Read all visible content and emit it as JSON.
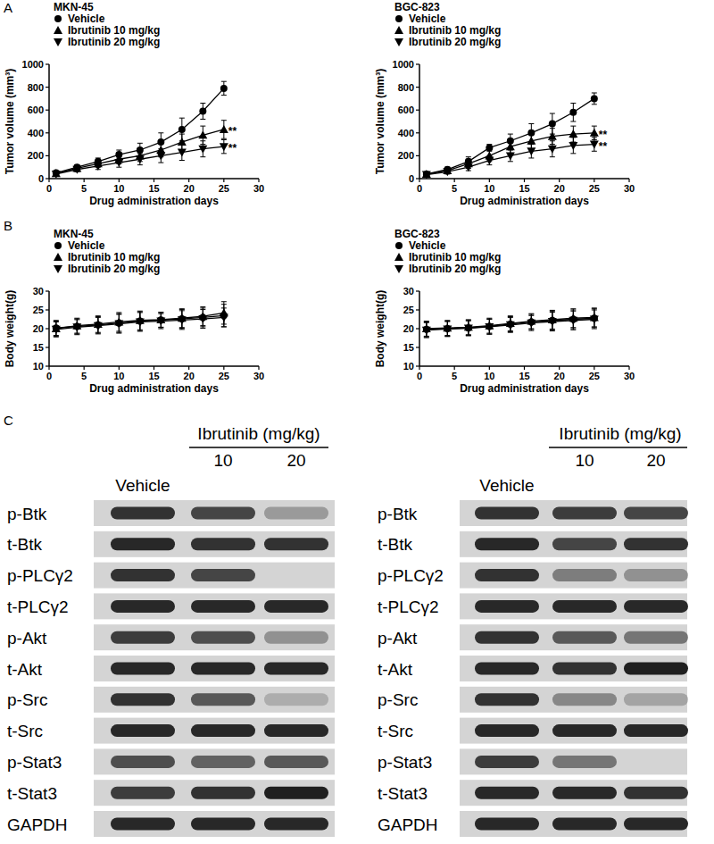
{
  "panel_labels": [
    "A",
    "B",
    "C"
  ],
  "chart_data": [
    {
      "type": "line",
      "title": "MKN-45",
      "x_label": "Drug administration days",
      "y_label": "Tumor volume (mm³)",
      "x": [
        1,
        4,
        7,
        10,
        13,
        16,
        19,
        22,
        25
      ],
      "xlim": [
        0,
        30
      ],
      "xticks": [
        0,
        5,
        10,
        15,
        20,
        25,
        30
      ],
      "ylim": [
        0,
        1000
      ],
      "yticks": [
        0,
        200,
        400,
        600,
        800,
        1000
      ],
      "grid": false,
      "series": [
        {
          "name": "Vehicle",
          "color": "#000000",
          "marker": "circle",
          "values": [
            50,
            100,
            150,
            210,
            250,
            320,
            430,
            590,
            790
          ],
          "errors": [
            10,
            20,
            30,
            40,
            60,
            80,
            100,
            70,
            60
          ]
        },
        {
          "name": "Ibrutinib 10 mg/kg",
          "color": "#000000",
          "marker": "triangle-up",
          "values": [
            45,
            90,
            130,
            170,
            200,
            250,
            320,
            380,
            430
          ],
          "errors": [
            10,
            20,
            30,
            40,
            50,
            60,
            70,
            80,
            80
          ],
          "annotation": "**"
        },
        {
          "name": "Ibrutinib 20 mg/kg",
          "color": "#000000",
          "marker": "triangle-down",
          "values": [
            40,
            80,
            110,
            140,
            170,
            200,
            230,
            260,
            280
          ],
          "errors": [
            10,
            20,
            30,
            40,
            50,
            60,
            70,
            70,
            60
          ],
          "annotation": "**"
        }
      ]
    },
    {
      "type": "line",
      "title": "BGC-823",
      "x_label": "Drug administration days",
      "y_label": "Tumor volume (mm³)",
      "x": [
        1,
        4,
        7,
        10,
        13,
        16,
        19,
        22,
        25
      ],
      "xlim": [
        0,
        30
      ],
      "xticks": [
        0,
        5,
        10,
        15,
        20,
        25,
        30
      ],
      "ylim": [
        0,
        1000
      ],
      "yticks": [
        0,
        200,
        400,
        600,
        800,
        1000
      ],
      "grid": false,
      "series": [
        {
          "name": "Vehicle",
          "color": "#000000",
          "marker": "circle",
          "values": [
            40,
            80,
            150,
            270,
            330,
            400,
            480,
            580,
            700
          ],
          "errors": [
            10,
            20,
            40,
            30,
            60,
            80,
            90,
            80,
            50
          ]
        },
        {
          "name": "Ibrutinib 10 mg/kg",
          "color": "#000000",
          "marker": "triangle-up",
          "values": [
            40,
            70,
            130,
            200,
            280,
            330,
            370,
            390,
            400
          ],
          "errors": [
            10,
            20,
            40,
            50,
            60,
            70,
            70,
            70,
            60
          ],
          "annotation": "**"
        },
        {
          "name": "Ibrutinib 20 mg/kg",
          "color": "#000000",
          "marker": "triangle-down",
          "values": [
            35,
            60,
            100,
            160,
            200,
            240,
            260,
            290,
            300
          ],
          "errors": [
            10,
            20,
            30,
            40,
            50,
            60,
            70,
            70,
            60
          ],
          "annotation": "**"
        }
      ]
    },
    {
      "type": "line",
      "title": "MKN-45",
      "x_label": "Drug administration days",
      "y_label": "Body weight(g)",
      "x": [
        1,
        4,
        7,
        10,
        13,
        16,
        19,
        22,
        25
      ],
      "xlim": [
        0,
        30
      ],
      "xticks": [
        0,
        5,
        10,
        15,
        20,
        25,
        30
      ],
      "ylim": [
        10,
        30
      ],
      "yticks": [
        10,
        15,
        20,
        25,
        30
      ],
      "grid": false,
      "series": [
        {
          "name": "Vehicle",
          "color": "#000000",
          "marker": "circle",
          "values": [
            20.2,
            20.6,
            21.0,
            21.5,
            22.0,
            22.3,
            22.6,
            23.0,
            23.5
          ],
          "errors": [
            2.0,
            2.0,
            2.2,
            2.5,
            2.5,
            2.0,
            2.5,
            2.5,
            3.0
          ]
        },
        {
          "name": "Ibrutinib 10 mg/kg",
          "color": "#000000",
          "marker": "triangle-up",
          "values": [
            20.0,
            20.8,
            21.2,
            21.8,
            22.2,
            22.4,
            22.8,
            23.3,
            24.2
          ],
          "errors": [
            2.0,
            2.0,
            2.2,
            2.5,
            2.5,
            2.0,
            2.5,
            2.5,
            3.0
          ]
        },
        {
          "name": "Ibrutinib 20 mg/kg",
          "color": "#000000",
          "marker": "triangle-down",
          "values": [
            19.8,
            20.4,
            20.8,
            21.3,
            21.8,
            22.0,
            22.3,
            22.6,
            23.0
          ],
          "errors": [
            2.0,
            2.0,
            2.2,
            2.5,
            2.5,
            2.0,
            2.5,
            2.5,
            2.5
          ]
        }
      ]
    },
    {
      "type": "line",
      "title": "BGC-823",
      "x_label": "Drug administration days",
      "y_label": "Body weight(g)",
      "x": [
        1,
        4,
        7,
        10,
        13,
        16,
        19,
        22,
        25
      ],
      "xlim": [
        0,
        30
      ],
      "xticks": [
        0,
        5,
        10,
        15,
        20,
        25,
        30
      ],
      "ylim": [
        10,
        30
      ],
      "yticks": [
        10,
        15,
        20,
        25,
        30
      ],
      "grid": false,
      "series": [
        {
          "name": "Vehicle",
          "color": "#000000",
          "marker": "circle",
          "values": [
            19.8,
            20.0,
            20.2,
            20.6,
            21.2,
            21.8,
            22.2,
            22.5,
            22.8
          ],
          "errors": [
            2.0,
            2.0,
            2.0,
            2.0,
            2.0,
            2.0,
            2.5,
            2.5,
            2.5
          ]
        },
        {
          "name": "Ibrutinib 10 mg/kg",
          "color": "#000000",
          "marker": "triangle-up",
          "values": [
            20.0,
            20.2,
            20.4,
            20.8,
            21.4,
            22.0,
            22.4,
            22.8,
            23.0
          ],
          "errors": [
            2.0,
            2.0,
            2.0,
            2.0,
            2.0,
            2.0,
            2.5,
            2.5,
            2.5
          ]
        },
        {
          "name": "Ibrutinib 20 mg/kg",
          "color": "#000000",
          "marker": "triangle-down",
          "values": [
            19.6,
            19.9,
            20.1,
            20.5,
            21.0,
            21.5,
            21.9,
            22.2,
            22.5
          ],
          "errors": [
            2.0,
            2.0,
            2.0,
            2.0,
            2.0,
            2.0,
            2.5,
            2.5,
            2.5
          ]
        }
      ]
    }
  ],
  "blots": [
    {
      "header": "Ibrutinib (mg/kg)",
      "columns": [
        "Vehicle",
        "10",
        "20"
      ],
      "rows": [
        {
          "label": "p-Btk",
          "intensities": [
            0.85,
            0.75,
            0.3
          ]
        },
        {
          "label": "t-Btk",
          "intensities": [
            0.9,
            0.85,
            0.85
          ]
        },
        {
          "label": "p-PLCγ2",
          "intensities": [
            0.85,
            0.75,
            0
          ]
        },
        {
          "label": "t-PLCγ2",
          "intensities": [
            0.9,
            0.9,
            0.9
          ]
        },
        {
          "label": "p-Akt",
          "intensities": [
            0.8,
            0.7,
            0.35
          ]
        },
        {
          "label": "t-Akt",
          "intensities": [
            0.9,
            0.9,
            0.9
          ]
        },
        {
          "label": "p-Src",
          "intensities": [
            0.85,
            0.65,
            0.2
          ]
        },
        {
          "label": "t-Src",
          "intensities": [
            0.9,
            0.9,
            0.9
          ]
        },
        {
          "label": "p-Stat3",
          "intensities": [
            0.7,
            0.6,
            0.65
          ]
        },
        {
          "label": "t-Stat3",
          "intensities": [
            0.8,
            0.85,
            0.95
          ]
        },
        {
          "label": "GAPDH",
          "intensities": [
            0.9,
            0.9,
            0.9
          ]
        }
      ]
    },
    {
      "header": "Ibrutinib (mg/kg)",
      "columns": [
        "Vehicle",
        "10",
        "20"
      ],
      "rows": [
        {
          "label": "p-Btk",
          "intensities": [
            0.85,
            0.8,
            0.75
          ]
        },
        {
          "label": "t-Btk",
          "intensities": [
            0.9,
            0.75,
            0.85
          ]
        },
        {
          "label": "p-PLCγ2",
          "intensities": [
            0.85,
            0.45,
            0.35
          ]
        },
        {
          "label": "t-PLCγ2",
          "intensities": [
            0.9,
            0.9,
            0.9
          ]
        },
        {
          "label": "p-Akt",
          "intensities": [
            0.85,
            0.65,
            0.5
          ]
        },
        {
          "label": "t-Akt",
          "intensities": [
            0.9,
            0.85,
            0.95
          ]
        },
        {
          "label": "p-Src",
          "intensities": [
            0.85,
            0.4,
            0.25
          ]
        },
        {
          "label": "t-Src",
          "intensities": [
            0.9,
            0.9,
            0.9
          ]
        },
        {
          "label": "p-Stat3",
          "intensities": [
            0.8,
            0.5,
            0
          ]
        },
        {
          "label": "t-Stat3",
          "intensities": [
            0.9,
            0.9,
            0.85
          ]
        },
        {
          "label": "GAPDH",
          "intensities": [
            0.9,
            0.9,
            0.9
          ]
        }
      ]
    }
  ]
}
